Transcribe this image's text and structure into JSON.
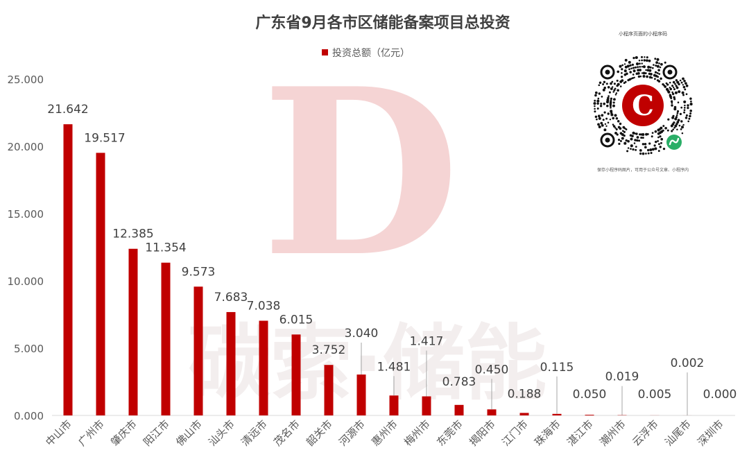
{
  "chart_data": {
    "type": "bar",
    "title": "广东省9月各市区储能备案项目总投资",
    "legend": {
      "label": "投资总额（亿元）",
      "color": "#c00000",
      "position": "top"
    },
    "categories": [
      "中山市",
      "广州市",
      "肇庆市",
      "阳江市",
      "佛山市",
      "汕头市",
      "清远市",
      "茂名市",
      "韶关市",
      "河源市",
      "惠州市",
      "梅州市",
      "东莞市",
      "揭阳市",
      "江门市",
      "珠海市",
      "湛江市",
      "潮州市",
      "云浮市",
      "汕尾市",
      "深圳市"
    ],
    "series": [
      {
        "name": "投资总额（亿元）",
        "values": [
          21.642,
          19.517,
          12.385,
          11.354,
          9.573,
          7.683,
          7.038,
          6.015,
          3.752,
          3.04,
          1.481,
          1.417,
          0.783,
          0.45,
          0.188,
          0.115,
          0.05,
          0.019,
          0.005,
          0.002,
          0.0
        ]
      }
    ],
    "data_labels": [
      "21.642",
      "19.517",
      "12.385",
      "11.354",
      "9.573",
      "7.683",
      "7.038",
      "6.015",
      "3.752",
      "3.040",
      "1.481",
      "1.417",
      "0.783",
      "0.450",
      "0.188",
      "0.115",
      "0.050",
      "0.019",
      "0.005",
      "0.002",
      "0.000"
    ],
    "y_ticks": [
      "0.000",
      "5.000",
      "10.000",
      "15.000",
      "20.000",
      "25.000"
    ],
    "ylim": [
      0,
      25
    ],
    "grid": false,
    "bar_color": "#c00000"
  },
  "watermark": {
    "text": "碳索·储能",
    "logo_letter": "D"
  },
  "qr_panel": {
    "top_text": "小程序页面的小程序码",
    "bottom_text": "保存小程序码图片，可用于公众号文章、小程序内",
    "logo_letter": "C"
  }
}
